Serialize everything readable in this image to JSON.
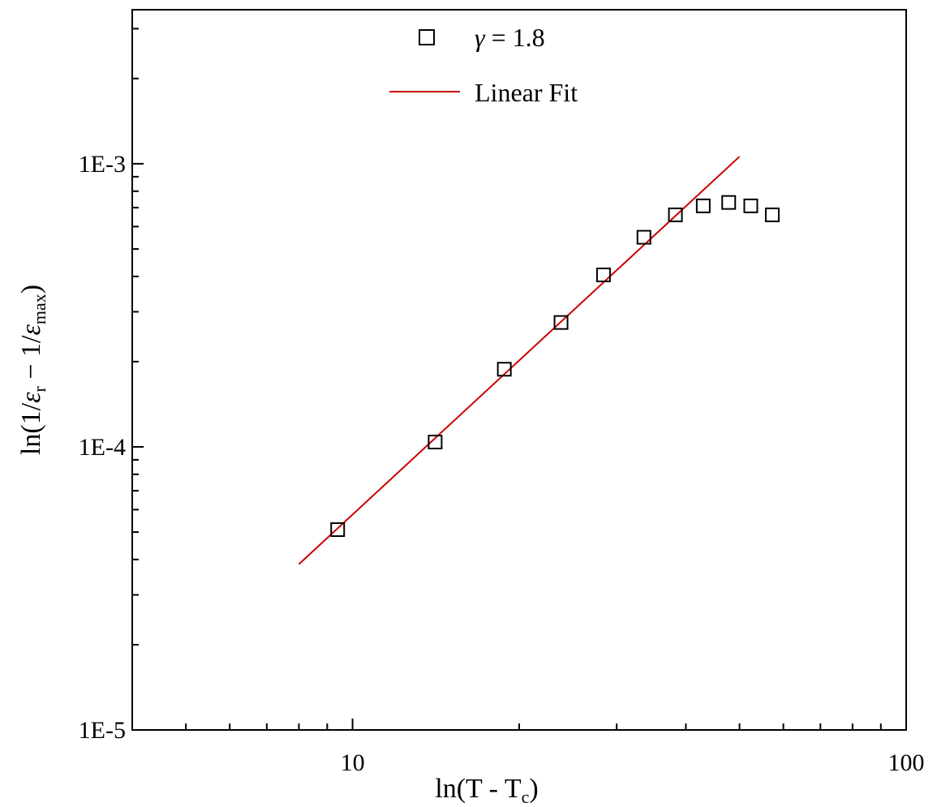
{
  "chart_data": {
    "type": "scatter",
    "x_scale": "log",
    "y_scale": "log",
    "xlim": [
      4,
      100
    ],
    "ylim": [
      1e-05,
      0.0035
    ],
    "xlabel": {
      "prefix": "ln(T - T",
      "sub": "c",
      "suffix": ")"
    },
    "ylabel": {
      "p1": "ln(1/",
      "eps1": "ε",
      "sub1": "r",
      "p2": " − 1/",
      "eps2": "ε",
      "sub2": "max",
      "p3": ")"
    },
    "x_ticks": [
      {
        "value": 10,
        "label": "10"
      },
      {
        "value": 100,
        "label": "100"
      }
    ],
    "y_ticks": [
      {
        "value": 1e-05,
        "label": "1E-5"
      },
      {
        "value": 0.0001,
        "label": "1E-4"
      },
      {
        "value": 0.001,
        "label": "1E-3"
      }
    ],
    "series": [
      {
        "name": "γ = 1.8",
        "name_parts": {
          "symbol": "γ",
          "rest": " = 1.8"
        },
        "marker": "open-square",
        "color": "#000000",
        "points": [
          {
            "x": 9.4,
            "y": 5.1e-05
          },
          {
            "x": 14.1,
            "y": 0.000104
          },
          {
            "x": 18.8,
            "y": 0.000188
          },
          {
            "x": 23.8,
            "y": 0.000275
          },
          {
            "x": 28.4,
            "y": 0.000405
          },
          {
            "x": 33.6,
            "y": 0.00055
          },
          {
            "x": 38.3,
            "y": 0.00066
          },
          {
            "x": 43.0,
            "y": 0.00071
          },
          {
            "x": 47.8,
            "y": 0.00073
          },
          {
            "x": 52.4,
            "y": 0.00071
          },
          {
            "x": 57.3,
            "y": 0.00066
          }
        ]
      },
      {
        "name": "Linear Fit",
        "type": "line",
        "color": "#cc0000",
        "points": [
          {
            "x": 8.0,
            "y": 3.85e-05
          },
          {
            "x": 50.0,
            "y": 0.00106
          }
        ]
      }
    ],
    "legend_position": "top-center",
    "grid": false
  }
}
